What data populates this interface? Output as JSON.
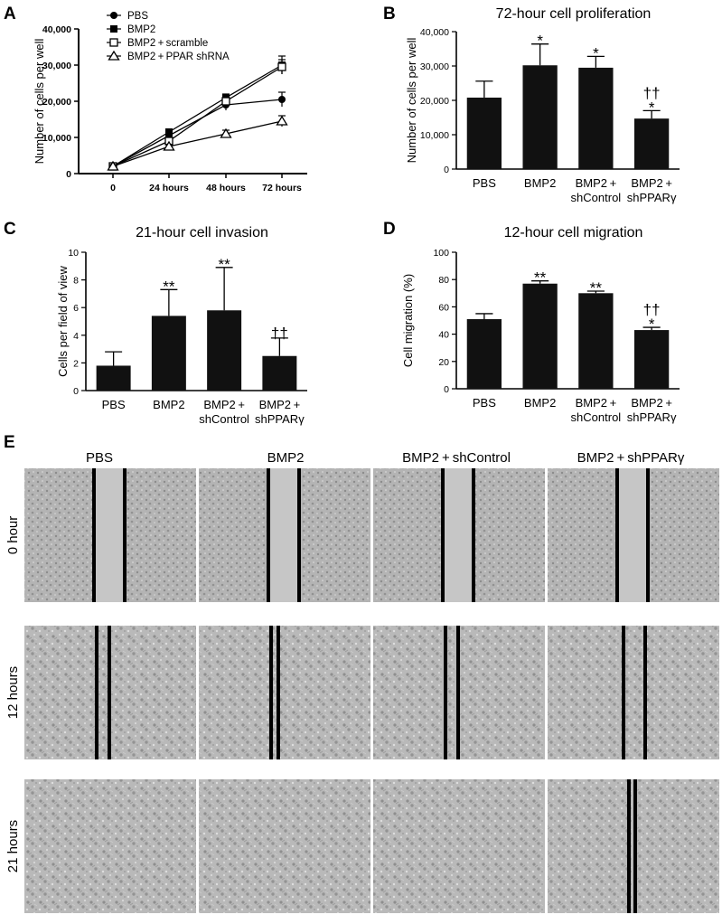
{
  "panel_letters": {
    "a": "A",
    "b": "B",
    "c": "C",
    "d": "D",
    "e": "E"
  },
  "chart_data": [
    {
      "id": "A",
      "type": "line",
      "title": "",
      "xlabel": "",
      "ylabel": "Number of cells per well",
      "categories": [
        "0",
        "24 hours",
        "48 hours",
        "72 hours"
      ],
      "ylim": [
        0,
        40000
      ],
      "yticks": [
        "0",
        "10,000",
        "20,000",
        "30,000",
        "40,000"
      ],
      "legend_position": "top-left",
      "series": [
        {
          "name": "PBS",
          "marker": "filled-circle",
          "values": [
            2000,
            10500,
            19000,
            20500
          ],
          "errors": [
            500,
            800,
            1500,
            2000
          ]
        },
        {
          "name": "BMP2",
          "marker": "filled-square",
          "values": [
            2000,
            11500,
            21000,
            30000
          ],
          "errors": [
            500,
            800,
            1000,
            2500
          ]
        },
        {
          "name": "BMP2 + scramble",
          "marker": "open-square",
          "values": [
            2000,
            9000,
            20000,
            29500
          ],
          "errors": [
            500,
            800,
            1000,
            2000
          ]
        },
        {
          "name": "BMP2 + PPAR shRNA",
          "marker": "open-triangle",
          "values": [
            2000,
            7500,
            11000,
            14500
          ],
          "errors": [
            500,
            600,
            1000,
            1500
          ]
        }
      ]
    },
    {
      "id": "B",
      "type": "bar",
      "title": "72-hour  cell  proliferation",
      "xlabel": "",
      "ylabel": "Number of cells per well",
      "categories": [
        "PBS",
        "BMP2",
        "BMP2 +",
        "BMP2 +"
      ],
      "sublabels": [
        "",
        "",
        "shControl",
        "shPPARγ"
      ],
      "values": [
        20800,
        30200,
        29500,
        14700
      ],
      "errors": [
        4800,
        6200,
        3300,
        2300
      ],
      "annotations": [
        "",
        "*",
        "*",
        "*"
      ],
      "annotations_top": [
        "",
        "",
        "",
        "††"
      ],
      "ylim": [
        0,
        40000
      ],
      "yticks": [
        "0",
        "10,000",
        "20,000",
        "30,000",
        "40,000"
      ]
    },
    {
      "id": "C",
      "type": "bar",
      "title": "21-hour  cell  invasion",
      "xlabel": "",
      "ylabel": "Cells per field of view",
      "categories": [
        "PBS",
        "BMP2",
        "BMP2 +",
        "BMP2 +"
      ],
      "sublabels": [
        "",
        "",
        "shControl",
        "shPPARγ"
      ],
      "values": [
        1.8,
        5.4,
        5.8,
        2.5
      ],
      "errors": [
        1.0,
        1.9,
        3.1,
        1.3
      ],
      "annotations": [
        "",
        "**",
        "**",
        ""
      ],
      "annotations_top": [
        "",
        "",
        "",
        "††"
      ],
      "ylim": [
        0,
        10
      ],
      "yticks": [
        "0",
        "2",
        "4",
        "6",
        "8",
        "10"
      ]
    },
    {
      "id": "D",
      "type": "bar",
      "title": "12-hour  cell  migration",
      "xlabel": "",
      "ylabel": "Cell migration (%)",
      "categories": [
        "PBS",
        "BMP2",
        "BMP2 +",
        "BMP2 +"
      ],
      "sublabels": [
        "",
        "",
        "shControl",
        "shPPARγ"
      ],
      "values": [
        51,
        77,
        70,
        43
      ],
      "errors": [
        4,
        2,
        1.5,
        2
      ],
      "annotations": [
        "",
        "**",
        "**",
        "*"
      ],
      "annotations_top": [
        "",
        "",
        "",
        "††"
      ],
      "ylim": [
        0,
        100
      ],
      "yticks": [
        "0",
        "20",
        "40",
        "60",
        "80",
        "100"
      ]
    }
  ],
  "micrographs": {
    "columns": [
      "PBS",
      "BMP2",
      "BMP2 + shControl",
      "BMP2 + shPPARγ"
    ],
    "rows": [
      "0 hour",
      "12 hours",
      "21 hours"
    ],
    "gap_lines": [
      [
        "double",
        "double",
        "double",
        "double"
      ],
      [
        "double",
        "double",
        "double",
        "double"
      ],
      [
        "none",
        "none",
        "none",
        "double"
      ]
    ],
    "gap_fill": [
      [
        true,
        true,
        true,
        true
      ],
      [
        false,
        false,
        false,
        false
      ],
      [
        false,
        false,
        false,
        false
      ]
    ]
  }
}
